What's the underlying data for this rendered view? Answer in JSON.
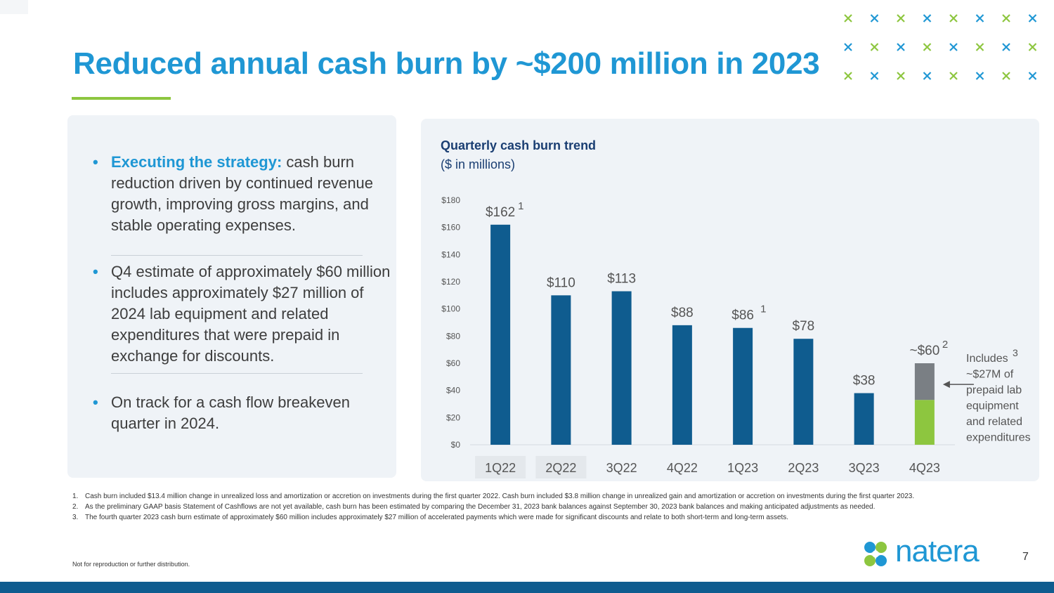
{
  "slide": {
    "title": "Reduced annual cash burn by ~$200 million in 2023",
    "page_number": "7",
    "disclaimer": "Not for reproduction or further distribution.",
    "logo_text": "natera",
    "colors": {
      "accent_blue": "#1f97d4",
      "accent_green": "#8dc63f",
      "bar_blue": "#0f5c8f",
      "bar_gray": "#7a7f84",
      "bar_green": "#8dc63f",
      "navy": "#1a3e72"
    }
  },
  "bullets": [
    {
      "lead": "Executing the strategy:",
      "text": " cash burn reduction driven by continued revenue growth, improving gross margins, and stable operating expenses."
    },
    {
      "lead": "",
      "text": "Q4 estimate of approximately $60 million includes approximately $27 million of 2024 lab equipment and related expenditures that were prepaid in exchange for discounts."
    },
    {
      "lead": "",
      "text": "On track for a cash flow breakeven quarter in 2024."
    }
  ],
  "chart_data": {
    "type": "bar",
    "title": "Quarterly cash burn trend",
    "subtitle": "($ in millions)",
    "categories": [
      "1Q22",
      "2Q22",
      "3Q22",
      "4Q22",
      "1Q23",
      "2Q23",
      "3Q23",
      "4Q23"
    ],
    "values": [
      162,
      110,
      113,
      88,
      86,
      78,
      38,
      60
    ],
    "data_labels": [
      "$162",
      "$110",
      "$113",
      "$88",
      "$86",
      "$78",
      "$38",
      "~$60"
    ],
    "superscripts": [
      "1",
      "",
      "",
      "",
      "1",
      "",
      "",
      "2"
    ],
    "stacked_last": {
      "base_value": 33,
      "prepaid_value": 27
    },
    "ylim": [
      0,
      180
    ],
    "y_ticks": [
      0,
      20,
      40,
      60,
      80,
      100,
      120,
      140,
      160,
      180
    ],
    "y_tick_labels": [
      "$0",
      "$20",
      "$40",
      "$60",
      "$80",
      "$100",
      "$120",
      "$140",
      "$160",
      "$180"
    ],
    "annotation": {
      "lines": [
        "Includes",
        "~$27M of",
        "prepaid lab",
        "equipment",
        "and related",
        "expenditures"
      ],
      "superscript": "3"
    }
  },
  "footnotes": [
    {
      "num": "1.",
      "text": "Cash burn included $13.4 million change in unrealized loss and amortization or accretion on investments during the first quarter 2022. Cash burn included $3.8 million change in unrealized gain and amortization or accretion on investments during the first quarter 2023."
    },
    {
      "num": "2.",
      "text": "As the preliminary GAAP basis Statement of Cashflows are not yet available, cash burn has been estimated by comparing the December 31, 2023 bank balances against September 30, 2023 bank balances and making anticipated adjustments as needed."
    },
    {
      "num": "3.",
      "text": "The fourth quarter 2023 cash burn estimate of approximately $60 million includes approximately $27 million of accelerated payments which were made for significant discounts and relate to both short-term and long-term assets."
    }
  ]
}
